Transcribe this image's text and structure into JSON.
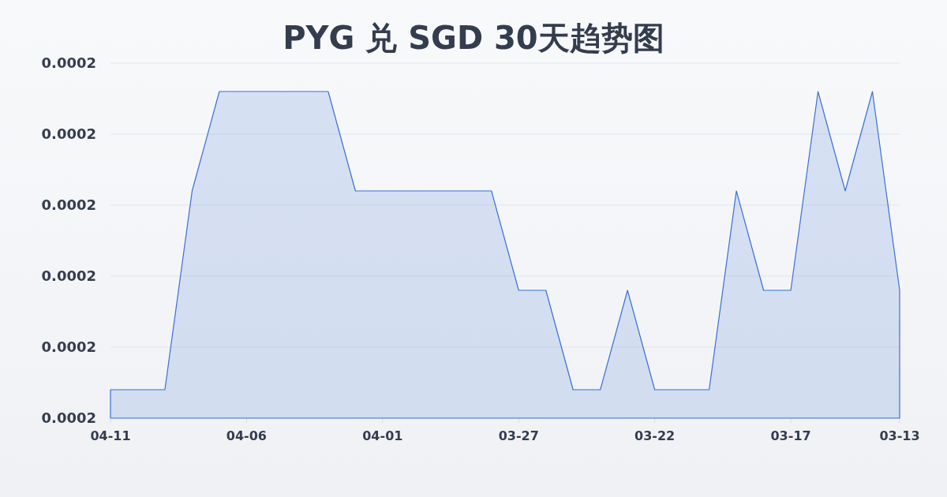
{
  "chart_data": {
    "type": "area",
    "title": "PYG 兑 SGD 30天趋势图",
    "categories": [
      "04-11",
      null,
      null,
      null,
      null,
      "04-06",
      null,
      null,
      null,
      null,
      "04-01",
      null,
      null,
      null,
      null,
      "03-27",
      null,
      null,
      null,
      null,
      "03-22",
      null,
      null,
      null,
      null,
      "03-17",
      null,
      null,
      null,
      "03-13"
    ],
    "values": [
      0.0001662,
      0.0001662,
      0.0001662,
      0.0001676,
      0.0001683,
      0.0001683,
      0.0001683,
      0.0001683,
      0.0001683,
      0.0001676,
      0.0001676,
      0.0001676,
      0.0001676,
      0.0001676,
      0.0001676,
      0.0001669,
      0.0001669,
      0.0001662,
      0.0001662,
      0.0001669,
      0.0001662,
      0.0001662,
      0.0001662,
      0.0001676,
      0.0001669,
      0.0001669,
      0.0001683,
      0.0001676,
      0.0001683,
      0.0001669
    ],
    "color": "#3b6fd4",
    "ylim": [
      0.000166,
      0.0001685
    ],
    "yticks": [
      {
        "value": 0.000166,
        "label": "0.0002"
      },
      {
        "value": 0.0001665,
        "label": "0.0002"
      },
      {
        "value": 0.000167,
        "label": "0.0002"
      },
      {
        "value": 0.0001675,
        "label": "0.0002"
      },
      {
        "value": 0.000168,
        "label": "0.0002"
      },
      {
        "value": 0.0001685,
        "label": "0.0002"
      }
    ],
    "grid": "y"
  }
}
